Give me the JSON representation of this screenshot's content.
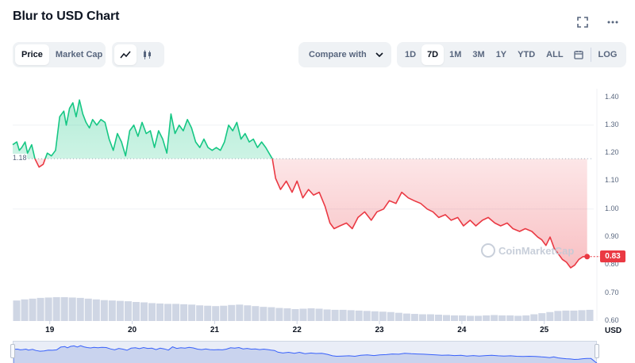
{
  "title": "Blur to USD Chart",
  "icons": {
    "fullscreen": "fullscreen-icon",
    "more": "more-horizontal-icon"
  },
  "type_toggle": {
    "price": "Price",
    "market_cap": "Market Cap",
    "active": "Price"
  },
  "style_toggle": {
    "line": "line-chart-icon",
    "candle": "candlestick-icon",
    "active": "line"
  },
  "compare": {
    "label": "Compare with"
  },
  "ranges": {
    "items": [
      "1D",
      "7D",
      "1M",
      "3M",
      "1Y",
      "YTD",
      "ALL"
    ],
    "active": "7D",
    "calendar": "calendar-icon",
    "log": "LOG"
  },
  "watermark": "CoinMarketCap",
  "chart_data": {
    "type": "line",
    "title": "Blur to USD Chart",
    "currency": "USD",
    "x_ticks": [
      "19",
      "20",
      "21",
      "22",
      "23",
      "24",
      "25"
    ],
    "y_ticks": [
      "1.40",
      "1.30",
      "1.20",
      "1.10",
      "1.00",
      "0.90",
      "0.80",
      "0.70",
      "0.60"
    ],
    "ylim": [
      0.6,
      1.43
    ],
    "xlim": [
      18.55,
      25.6
    ],
    "reference_price": 1.18,
    "reference_label": "1.18",
    "current_price_label": "0.83",
    "colors": {
      "up": "#16c784",
      "down": "#ea3943",
      "volume": "#cfd6e4"
    },
    "series": [
      {
        "x": [
          18.55,
          18.6,
          18.63,
          18.66,
          18.7,
          18.73,
          18.78,
          18.82,
          18.87,
          18.92,
          18.97,
          19.02,
          19.07,
          19.12,
          19.17,
          19.2,
          19.24,
          19.28,
          19.32,
          19.36,
          19.4,
          19.44,
          19.48,
          19.52,
          19.57,
          19.62,
          19.67,
          19.72,
          19.77,
          19.82,
          19.87,
          19.92,
          19.97,
          20.02,
          20.07,
          20.12,
          20.17,
          20.22,
          20.27,
          20.32,
          20.37,
          20.42,
          20.47,
          20.52,
          20.57,
          20.62,
          20.67,
          20.72,
          20.77,
          20.82,
          20.87,
          20.92,
          20.97,
          21.02,
          21.07,
          21.12,
          21.17,
          21.22,
          21.27,
          21.32,
          21.37,
          21.42,
          21.47,
          21.52,
          21.57,
          21.62,
          21.66,
          21.7,
          21.74,
          21.8,
          21.87,
          21.94,
          22.0,
          22.07,
          22.14,
          22.2,
          22.27,
          22.34,
          22.4,
          22.45,
          22.52,
          22.6,
          22.67,
          22.74,
          22.82,
          22.9,
          22.97,
          23.05,
          23.12,
          23.2,
          23.27,
          23.35,
          23.42,
          23.5,
          23.58,
          23.65,
          23.72,
          23.8,
          23.87,
          23.95,
          24.02,
          24.1,
          24.17,
          24.25,
          24.32,
          24.4,
          24.47,
          24.55,
          24.62,
          24.7,
          24.77,
          24.85,
          24.92,
          24.97,
          25.02,
          25.07,
          25.12,
          25.17,
          25.22,
          25.27,
          25.32,
          25.37,
          25.42,
          25.47,
          25.52
        ],
        "y": [
          1.23,
          1.24,
          1.21,
          1.22,
          1.24,
          1.2,
          1.23,
          1.18,
          1.15,
          1.16,
          1.2,
          1.19,
          1.21,
          1.33,
          1.35,
          1.3,
          1.36,
          1.38,
          1.33,
          1.39,
          1.34,
          1.31,
          1.29,
          1.32,
          1.3,
          1.32,
          1.31,
          1.25,
          1.21,
          1.27,
          1.24,
          1.19,
          1.28,
          1.3,
          1.26,
          1.31,
          1.27,
          1.28,
          1.22,
          1.28,
          1.25,
          1.2,
          1.34,
          1.27,
          1.3,
          1.28,
          1.32,
          1.29,
          1.24,
          1.22,
          1.25,
          1.22,
          1.21,
          1.22,
          1.21,
          1.24,
          1.3,
          1.28,
          1.31,
          1.25,
          1.27,
          1.24,
          1.25,
          1.22,
          1.24,
          1.22,
          1.2,
          1.18,
          1.11,
          1.07,
          1.1,
          1.06,
          1.1,
          1.04,
          1.07,
          1.05,
          1.06,
          1.01,
          0.95,
          0.93,
          0.94,
          0.95,
          0.93,
          0.97,
          0.99,
          0.96,
          0.99,
          1.0,
          1.03,
          1.02,
          1.06,
          1.04,
          1.03,
          1.02,
          1.0,
          0.99,
          0.97,
          0.98,
          0.96,
          0.97,
          0.94,
          0.96,
          0.94,
          0.96,
          0.97,
          0.95,
          0.94,
          0.95,
          0.93,
          0.92,
          0.93,
          0.92,
          0.9,
          0.89,
          0.87,
          0.9,
          0.86,
          0.84,
          0.82,
          0.81,
          0.79,
          0.8,
          0.82,
          0.83,
          0.83
        ]
      }
    ],
    "volume": [
      0.55,
      0.58,
      0.6,
      0.62,
      0.63,
      0.64,
      0.64,
      0.63,
      0.62,
      0.6,
      0.58,
      0.56,
      0.55,
      0.54,
      0.53,
      0.51,
      0.5,
      0.48,
      0.47,
      0.46,
      0.46,
      0.45,
      0.44,
      0.42,
      0.41,
      0.4,
      0.41,
      0.43,
      0.44,
      0.42,
      0.4,
      0.38,
      0.37,
      0.35,
      0.34,
      0.32,
      0.33,
      0.34,
      0.33,
      0.31,
      0.3,
      0.3,
      0.29,
      0.28,
      0.27,
      0.26,
      0.25,
      0.24,
      0.22,
      0.2,
      0.19,
      0.18,
      0.18,
      0.17,
      0.16,
      0.15,
      0.15,
      0.14,
      0.14,
      0.15,
      0.16,
      0.15,
      0.15,
      0.14,
      0.15,
      0.18,
      0.21,
      0.24,
      0.27,
      0.28,
      0.28,
      0.29,
      0.3
    ]
  }
}
